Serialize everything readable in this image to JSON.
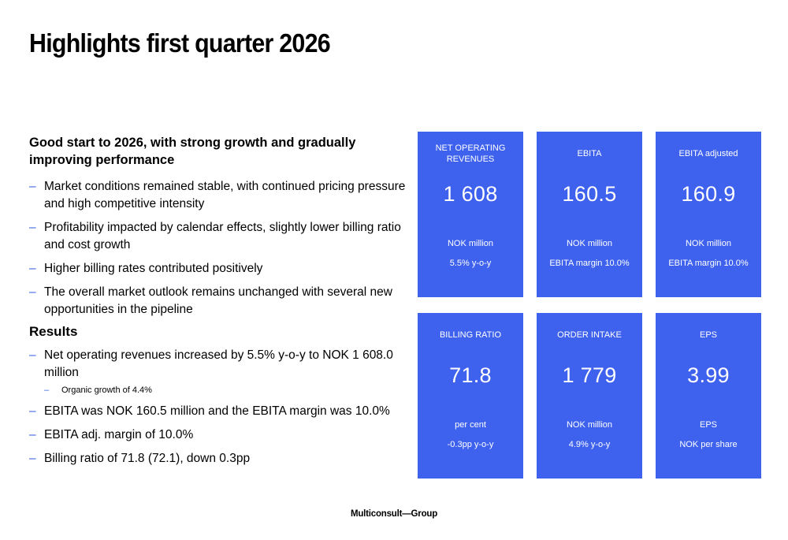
{
  "title": "Highlights first quarter 2026",
  "intro": "Good start to 2026, with strong growth and gradually improving performance",
  "bullets": [
    "Market conditions remained stable, with continued pricing pressure and high competitive intensity",
    "Profitability impacted by calendar effects, slightly lower billing ratio and cost growth",
    "Higher billing rates contributed positively",
    "The overall market outlook remains unchanged with several new opportunities in the pipeline"
  ],
  "results_heading": "Results",
  "results": [
    "Net operating revenues increased by 5.5% y-o-y to NOK 1 608.0 million",
    "EBITA was NOK 160.5 million and the EBITA margin was 10.0%",
    "EBITA adj. margin of 10.0%",
    "Billing ratio of 71.8 (72.1), down 0.3pp"
  ],
  "results_sub": [
    "Organic growth of 4.4%"
  ],
  "bullet_dash": "–",
  "kpis": [
    {
      "label": "NET OPERATING REVENUES",
      "value": "1 608",
      "unit": "NOK million",
      "change": "5.5% y-o-y"
    },
    {
      "label": "EBITA",
      "value": "160.5",
      "unit": "NOK million",
      "change": "EBITA margin 10.0%"
    },
    {
      "label": "EBITA adjusted",
      "value": "160.9",
      "unit": "NOK million",
      "change": "EBITA margin 10.0%"
    },
    {
      "label": "BILLING RATIO",
      "value": "71.8",
      "unit": "per cent",
      "change": "-0.3pp y-o-y"
    },
    {
      "label": "ORDER INTAKE",
      "value": "1 779",
      "unit": "NOK million",
      "change": "4.9% y-o-y"
    },
    {
      "label": "EPS",
      "value": "3.99",
      "unit": "EPS",
      "change": "NOK per share"
    }
  ],
  "colors": {
    "kpi_background": "#3f62ee",
    "bullet_dash": "#3a5fe0"
  },
  "footer": "Multiconsult—Group"
}
